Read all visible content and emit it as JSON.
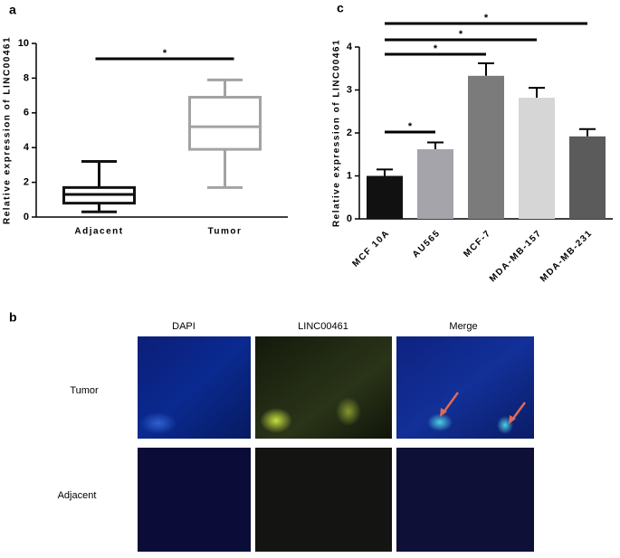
{
  "chart_data": [
    {
      "type": "box",
      "panel": "a",
      "ylabel": "Relative expression of LINC00461",
      "categories": [
        "Adjacent",
        "Tumor"
      ],
      "boxes": [
        {
          "min": 0.3,
          "q1": 0.8,
          "median": 1.3,
          "q3": 1.7,
          "max": 3.2,
          "color": "#111111"
        },
        {
          "min": 1.7,
          "q1": 3.9,
          "median": 5.2,
          "q3": 6.9,
          "max": 7.9,
          "color": "#a3a3a3"
        }
      ],
      "ylim": [
        0,
        10
      ],
      "yticks": [
        0,
        2,
        4,
        6,
        8,
        10
      ],
      "annotations": [
        {
          "text": "*",
          "from": 0,
          "to": 1
        }
      ]
    },
    {
      "type": "bar",
      "panel": "c",
      "ylabel": "Relative expression of LINC00461",
      "categories": [
        "MCF 10A",
        "AU565",
        "MCF-7",
        "MDA-MB-157",
        "MDA-MB-231"
      ],
      "values": [
        1.0,
        1.62,
        3.33,
        2.82,
        1.92
      ],
      "errors": [
        0.15,
        0.16,
        0.29,
        0.23,
        0.17
      ],
      "colors": [
        "#111111",
        "#a4a4aa",
        "#7b7b7b",
        "#d6d6d6",
        "#5b5b5b"
      ],
      "ylim": [
        0,
        4
      ],
      "yticks": [
        0,
        1,
        2,
        3,
        4
      ],
      "annotations": [
        {
          "text": "*",
          "from": 0,
          "to": 1
        },
        {
          "text": "*",
          "from": 0,
          "to": 2
        },
        {
          "text": "*",
          "from": 0,
          "to": 3
        },
        {
          "text": "*",
          "from": 0,
          "to": 4
        }
      ]
    }
  ],
  "figure_b": {
    "panel": "b",
    "columns": [
      "DAPI",
      "LINC00461",
      "Merge"
    ],
    "rows": [
      "Tumor",
      "Adjacent"
    ]
  }
}
